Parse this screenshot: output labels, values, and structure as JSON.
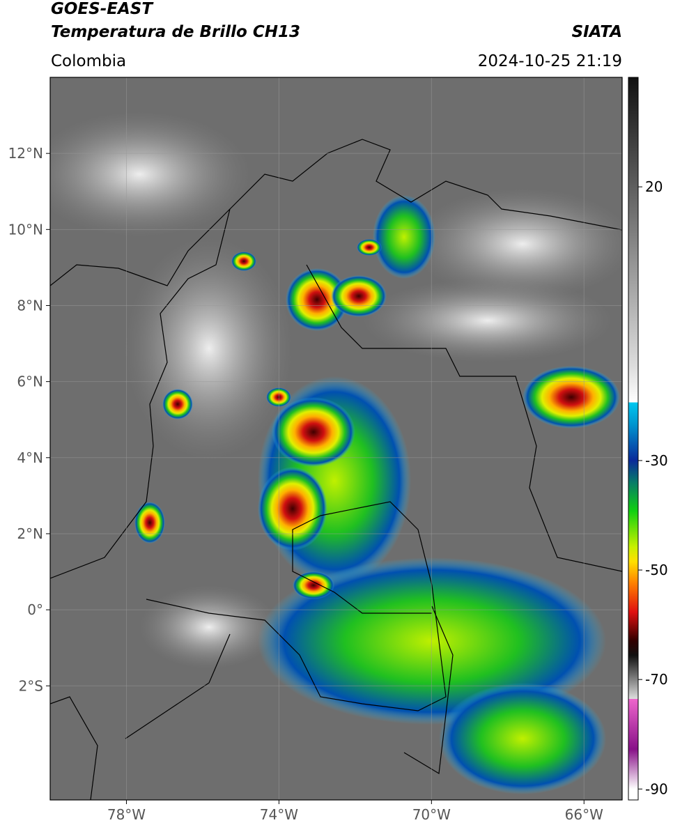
{
  "header": {
    "title": "GOES-EAST",
    "subtitle": "Temperatura de Brillo CH13",
    "source": "SIATA",
    "region": "Colombia",
    "timestamp": "2024-10-25 21:19"
  },
  "map": {
    "xlim": [
      -80,
      -65
    ],
    "ylim": [
      -5,
      14
    ],
    "xticks": [
      {
        "value": -78,
        "label": "78°W"
      },
      {
        "value": -74,
        "label": "74°W"
      },
      {
        "value": -70,
        "label": "70°W"
      },
      {
        "value": -66,
        "label": "66°W"
      }
    ],
    "yticks": [
      {
        "value": 12,
        "label": "12°N"
      },
      {
        "value": 10,
        "label": "10°N"
      },
      {
        "value": 8,
        "label": "8°N"
      },
      {
        "value": 6,
        "label": "6°N"
      },
      {
        "value": 4,
        "label": "4°N"
      },
      {
        "value": 2,
        "label": "2°N"
      },
      {
        "value": 0,
        "label": "0°"
      },
      {
        "value": -2,
        "label": "2°S"
      }
    ],
    "grid": true
  },
  "colorbar": {
    "lim": [
      -92,
      40
    ],
    "ticks": [
      20,
      -30,
      -50,
      -70,
      -90
    ]
  }
}
